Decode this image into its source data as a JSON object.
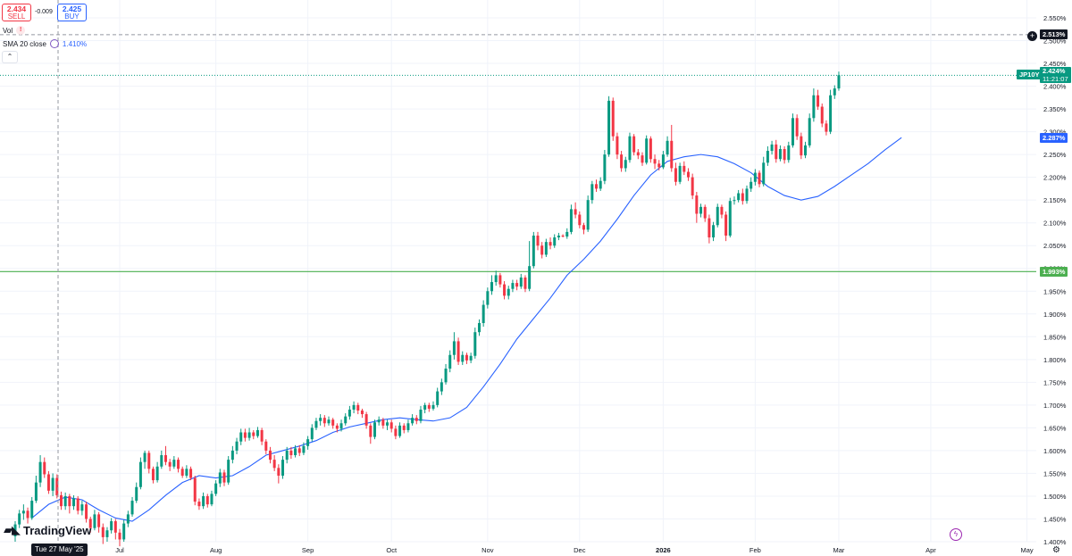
{
  "quote": {
    "sell_price": "2.434",
    "sell_label": "SELL",
    "buy_price": "2.425",
    "buy_label": "BUY",
    "spread": "-0.009"
  },
  "legend": {
    "vol_label": "Vol",
    "vol_icon": "warning-icon",
    "sma_label": "SMA 20 close",
    "sma_value": "1.410%",
    "collapse_icon": "chevron-up-icon"
  },
  "branding": {
    "logo_text": "TradingView"
  },
  "crosshair": {
    "date_label": "Tue 27 May '25"
  },
  "price_tags": {
    "crosshair_price": "2.513%",
    "symbol": "JP10Y",
    "last_price": "2.424%",
    "countdown": "11:21:07",
    "sma_price": "2.287%",
    "hline_price": "1.993%"
  },
  "colors": {
    "up": "#089981",
    "down": "#f23645",
    "sma": "#2962ff",
    "hline": "#4caf50",
    "grid": "#f0f3fa"
  },
  "chart_data": {
    "type": "candlestick",
    "title": "JP10Y",
    "ylim": [
      1.4,
      2.55
    ],
    "y_ticks": [
      "1.400%",
      "1.450%",
      "1.500%",
      "1.550%",
      "1.600%",
      "1.650%",
      "1.700%",
      "1.750%",
      "1.800%",
      "1.850%",
      "1.900%",
      "1.950%",
      "2.000%",
      "2.050%",
      "2.100%",
      "2.150%",
      "2.200%",
      "2.250%",
      "2.300%",
      "2.350%",
      "2.400%",
      "2.450%",
      "2.500%",
      "2.550%"
    ],
    "x_ticks": [
      {
        "label": "Jul",
        "index": 25
      },
      {
        "label": "Aug",
        "index": 48
      },
      {
        "label": "Sep",
        "index": 70
      },
      {
        "label": "Oct",
        "index": 90
      },
      {
        "label": "Nov",
        "index": 113
      },
      {
        "label": "Dec",
        "index": 135
      },
      {
        "label": "2026",
        "index": 155
      },
      {
        "label": "Feb",
        "index": 177
      },
      {
        "label": "Mar",
        "index": 197
      },
      {
        "label": "Apr",
        "index": 219
      },
      {
        "label": "May",
        "index": 242
      }
    ],
    "horizontal_line": 1.993,
    "crosshair_price": 2.513,
    "candles": [
      [
        1.412,
        1.438,
        1.4,
        1.445
      ],
      [
        1.438,
        1.462,
        1.43,
        1.47
      ],
      [
        1.462,
        1.468,
        1.448,
        1.482
      ],
      [
        1.468,
        1.452,
        1.44,
        1.475
      ],
      [
        1.452,
        1.49,
        1.448,
        1.498
      ],
      [
        1.49,
        1.53,
        1.485,
        1.545
      ],
      [
        1.53,
        1.575,
        1.52,
        1.59
      ],
      [
        1.575,
        1.548,
        1.54,
        1.585
      ],
      [
        1.548,
        1.512,
        1.505,
        1.555
      ],
      [
        1.512,
        1.54,
        1.5,
        1.55
      ],
      [
        1.54,
        1.502,
        1.495,
        1.548
      ],
      [
        1.502,
        1.478,
        1.47,
        1.51
      ],
      [
        1.478,
        1.5,
        1.47,
        1.508
      ],
      [
        1.5,
        1.478,
        1.462,
        1.505
      ],
      [
        1.478,
        1.495,
        1.47,
        1.502
      ],
      [
        1.495,
        1.468,
        1.46,
        1.5
      ],
      [
        1.468,
        1.482,
        1.458,
        1.49
      ],
      [
        1.482,
        1.45,
        1.442,
        1.488
      ],
      [
        1.45,
        1.43,
        1.42,
        1.455
      ],
      [
        1.43,
        1.46,
        1.425,
        1.47
      ],
      [
        1.46,
        1.432,
        1.42,
        1.465
      ],
      [
        1.432,
        1.41,
        1.395,
        1.44
      ],
      [
        1.41,
        1.425,
        1.4,
        1.432
      ],
      [
        1.425,
        1.445,
        1.418,
        1.452
      ],
      [
        1.445,
        1.42,
        1.405,
        1.45
      ],
      [
        1.42,
        1.405,
        1.39,
        1.428
      ],
      [
        1.405,
        1.44,
        1.4,
        1.448
      ],
      [
        1.44,
        1.46,
        1.432,
        1.468
      ],
      [
        1.46,
        1.49,
        1.455,
        1.498
      ],
      [
        1.49,
        1.52,
        1.485,
        1.53
      ],
      [
        1.52,
        1.575,
        1.515,
        1.585
      ],
      [
        1.575,
        1.595,
        1.56,
        1.6
      ],
      [
        1.595,
        1.56,
        1.55,
        1.6
      ],
      [
        1.56,
        1.535,
        1.528,
        1.565
      ],
      [
        1.535,
        1.565,
        1.53,
        1.575
      ],
      [
        1.565,
        1.59,
        1.56,
        1.6
      ],
      [
        1.59,
        1.575,
        1.568,
        1.61
      ],
      [
        1.575,
        1.565,
        1.555,
        1.582
      ],
      [
        1.565,
        1.58,
        1.56,
        1.588
      ],
      [
        1.58,
        1.56,
        1.552,
        1.585
      ],
      [
        1.56,
        1.545,
        1.54,
        1.565
      ],
      [
        1.545,
        1.56,
        1.54,
        1.568
      ],
      [
        1.56,
        1.54,
        1.535,
        1.565
      ],
      [
        1.54,
        1.488,
        1.48,
        1.545
      ],
      [
        1.488,
        1.478,
        1.47,
        1.495
      ],
      [
        1.478,
        1.5,
        1.472,
        1.508
      ],
      [
        1.5,
        1.482,
        1.475,
        1.505
      ],
      [
        1.482,
        1.505,
        1.478,
        1.512
      ],
      [
        1.505,
        1.528,
        1.5,
        1.535
      ],
      [
        1.528,
        1.552,
        1.52,
        1.56
      ],
      [
        1.552,
        1.53,
        1.522,
        1.558
      ],
      [
        1.53,
        1.58,
        1.525,
        1.588
      ],
      [
        1.58,
        1.6,
        1.572,
        1.61
      ],
      [
        1.6,
        1.62,
        1.592,
        1.628
      ],
      [
        1.62,
        1.64,
        1.612,
        1.648
      ],
      [
        1.64,
        1.628,
        1.62,
        1.648
      ],
      [
        1.628,
        1.64,
        1.622,
        1.65
      ],
      [
        1.64,
        1.632,
        1.625,
        1.645
      ],
      [
        1.632,
        1.645,
        1.628,
        1.652
      ],
      [
        1.645,
        1.62,
        1.612,
        1.65
      ],
      [
        1.62,
        1.6,
        1.592,
        1.625
      ],
      [
        1.6,
        1.58,
        1.572,
        1.608
      ],
      [
        1.58,
        1.562,
        1.555,
        1.59
      ],
      [
        1.562,
        1.545,
        1.528,
        1.57
      ],
      [
        1.545,
        1.58,
        1.538,
        1.588
      ],
      [
        1.58,
        1.6,
        1.572,
        1.608
      ],
      [
        1.6,
        1.59,
        1.582,
        1.608
      ],
      [
        1.59,
        1.605,
        1.585,
        1.612
      ],
      [
        1.605,
        1.595,
        1.588,
        1.612
      ],
      [
        1.595,
        1.61,
        1.59,
        1.618
      ],
      [
        1.61,
        1.625,
        1.602,
        1.632
      ],
      [
        1.625,
        1.65,
        1.62,
        1.658
      ],
      [
        1.65,
        1.665,
        1.645,
        1.672
      ],
      [
        1.665,
        1.672,
        1.655,
        1.68
      ],
      [
        1.672,
        1.66,
        1.652,
        1.678
      ],
      [
        1.66,
        1.668,
        1.655,
        1.675
      ],
      [
        1.668,
        1.655,
        1.648,
        1.672
      ],
      [
        1.655,
        1.648,
        1.64,
        1.66
      ],
      [
        1.648,
        1.66,
        1.642,
        1.668
      ],
      [
        1.66,
        1.675,
        1.655,
        1.682
      ],
      [
        1.675,
        1.69,
        1.668,
        1.698
      ],
      [
        1.69,
        1.7,
        1.682,
        1.708
      ],
      [
        1.7,
        1.688,
        1.68,
        1.705
      ],
      [
        1.688,
        1.68,
        1.672,
        1.692
      ],
      [
        1.68,
        1.655,
        1.648,
        1.685
      ],
      [
        1.655,
        1.63,
        1.615,
        1.66
      ],
      [
        1.63,
        1.662,
        1.625,
        1.668
      ],
      [
        1.662,
        1.668,
        1.655,
        1.675
      ],
      [
        1.668,
        1.655,
        1.648,
        1.672
      ],
      [
        1.655,
        1.662,
        1.645,
        1.668
      ],
      [
        1.662,
        1.648,
        1.64,
        1.668
      ],
      [
        1.648,
        1.632,
        1.625,
        1.655
      ],
      [
        1.632,
        1.655,
        1.628,
        1.662
      ],
      [
        1.655,
        1.645,
        1.638,
        1.66
      ],
      [
        1.645,
        1.66,
        1.64,
        1.668
      ],
      [
        1.66,
        1.672,
        1.655,
        1.68
      ],
      [
        1.672,
        1.665,
        1.658,
        1.678
      ],
      [
        1.665,
        1.69,
        1.66,
        1.698
      ],
      [
        1.69,
        1.7,
        1.682,
        1.705
      ],
      [
        1.7,
        1.692,
        1.685,
        1.705
      ],
      [
        1.692,
        1.7,
        1.688,
        1.708
      ],
      [
        1.7,
        1.73,
        1.695,
        1.738
      ],
      [
        1.73,
        1.75,
        1.722,
        1.758
      ],
      [
        1.75,
        1.78,
        1.745,
        1.79
      ],
      [
        1.78,
        1.81,
        1.772,
        1.82
      ],
      [
        1.81,
        1.84,
        1.8,
        1.86
      ],
      [
        1.84,
        1.795,
        1.788,
        1.848
      ],
      [
        1.795,
        1.81,
        1.788,
        1.818
      ],
      [
        1.81,
        1.798,
        1.79,
        1.815
      ],
      [
        1.798,
        1.808,
        1.792,
        1.815
      ],
      [
        1.808,
        1.86,
        1.802,
        1.87
      ],
      [
        1.86,
        1.88,
        1.852,
        1.888
      ],
      [
        1.88,
        1.92,
        1.872,
        1.93
      ],
      [
        1.92,
        1.95,
        1.912,
        1.958
      ],
      [
        1.95,
        1.97,
        1.942,
        1.985
      ],
      [
        1.97,
        1.985,
        1.962,
        1.995
      ],
      [
        1.985,
        1.965,
        1.958,
        1.99
      ],
      [
        1.965,
        1.94,
        1.932,
        1.972
      ],
      [
        1.94,
        1.955,
        1.932,
        1.962
      ],
      [
        1.955,
        1.968,
        1.948,
        1.975
      ],
      [
        1.968,
        1.96,
        1.952,
        1.975
      ],
      [
        1.96,
        1.98,
        1.955,
        1.988
      ],
      [
        1.98,
        1.955,
        1.948,
        1.985
      ],
      [
        1.955,
        2.005,
        1.95,
        2.06
      ],
      [
        2.005,
        2.072,
        2.0,
        2.08
      ],
      [
        2.072,
        2.05,
        2.04,
        2.08
      ],
      [
        2.05,
        2.03,
        2.022,
        2.058
      ],
      [
        2.03,
        2.058,
        2.025,
        2.065
      ],
      [
        2.058,
        2.05,
        2.042,
        2.068
      ],
      [
        2.05,
        2.068,
        2.045,
        2.075
      ],
      [
        2.068,
        2.072,
        2.062,
        2.078
      ],
      [
        2.072,
        2.07,
        2.068,
        2.075
      ],
      [
        2.07,
        2.08,
        2.065,
        2.088
      ],
      [
        2.08,
        2.13,
        2.075,
        2.14
      ],
      [
        2.13,
        2.118,
        2.11,
        2.145
      ],
      [
        2.118,
        2.095,
        2.088,
        2.125
      ],
      [
        2.095,
        2.085,
        2.075,
        2.1
      ],
      [
        2.085,
        2.15,
        2.08,
        2.16
      ],
      [
        2.15,
        2.185,
        2.142,
        2.192
      ],
      [
        2.185,
        2.175,
        2.168,
        2.195
      ],
      [
        2.175,
        2.192,
        2.17,
        2.2
      ],
      [
        2.192,
        2.25,
        2.185,
        2.26
      ],
      [
        2.25,
        2.368,
        2.245,
        2.378
      ],
      [
        2.368,
        2.29,
        2.28,
        2.375
      ],
      [
        2.29,
        2.25,
        2.24,
        2.298
      ],
      [
        2.25,
        2.22,
        2.212,
        2.258
      ],
      [
        2.22,
        2.238,
        2.212,
        2.245
      ],
      [
        2.238,
        2.29,
        2.232,
        2.298
      ],
      [
        2.29,
        2.255,
        2.248,
        2.295
      ],
      [
        2.255,
        2.248,
        2.24,
        2.262
      ],
      [
        2.248,
        2.232,
        2.225,
        2.255
      ],
      [
        2.232,
        2.285,
        2.228,
        2.292
      ],
      [
        2.285,
        2.24,
        2.232,
        2.29
      ],
      [
        2.24,
        2.23,
        2.218,
        2.25
      ],
      [
        2.23,
        2.222,
        2.215,
        2.238
      ],
      [
        2.222,
        2.25,
        2.218,
        2.258
      ],
      [
        2.25,
        2.28,
        2.245,
        2.29
      ],
      [
        2.28,
        2.22,
        2.212,
        2.315
      ],
      [
        2.22,
        2.19,
        2.182,
        2.232
      ],
      [
        2.19,
        2.225,
        2.185,
        2.232
      ],
      [
        2.225,
        2.212,
        2.205,
        2.235
      ],
      [
        2.212,
        2.2,
        2.192,
        2.22
      ],
      [
        2.2,
        2.16,
        2.152,
        2.208
      ],
      [
        2.16,
        2.12,
        2.1,
        2.168
      ],
      [
        2.12,
        2.135,
        2.112,
        2.142
      ],
      [
        2.135,
        2.11,
        2.102,
        2.14
      ],
      [
        2.11,
        2.068,
        2.055,
        2.118
      ],
      [
        2.068,
        2.095,
        2.06,
        2.102
      ],
      [
        2.095,
        2.135,
        2.09,
        2.142
      ],
      [
        2.135,
        2.118,
        2.11,
        2.14
      ],
      [
        2.118,
        2.072,
        2.06,
        2.125
      ],
      [
        2.072,
        2.148,
        2.068,
        2.155
      ],
      [
        2.148,
        2.15,
        2.14,
        2.158
      ],
      [
        2.15,
        2.165,
        2.145,
        2.172
      ],
      [
        2.165,
        2.148,
        2.14,
        2.175
      ],
      [
        2.148,
        2.175,
        2.142,
        2.182
      ],
      [
        2.175,
        2.19,
        2.168,
        2.2
      ],
      [
        2.19,
        2.21,
        2.182,
        2.218
      ],
      [
        2.21,
        2.185,
        2.178,
        2.215
      ],
      [
        2.185,
        2.232,
        2.18,
        2.245
      ],
      [
        2.232,
        2.258,
        2.225,
        2.268
      ],
      [
        2.258,
        2.272,
        2.25,
        2.28
      ],
      [
        2.272,
        2.24,
        2.232,
        2.282
      ],
      [
        2.24,
        2.262,
        2.235,
        2.27
      ],
      [
        2.262,
        2.238,
        2.23,
        2.268
      ],
      [
        2.238,
        2.27,
        2.232,
        2.278
      ],
      [
        2.27,
        2.33,
        2.265,
        2.34
      ],
      [
        2.33,
        2.29,
        2.282,
        2.338
      ],
      [
        2.29,
        2.248,
        2.24,
        2.298
      ],
      [
        2.248,
        2.27,
        2.242,
        2.278
      ],
      [
        2.27,
        2.33,
        2.265,
        2.34
      ],
      [
        2.33,
        2.38,
        2.322,
        2.395
      ],
      [
        2.38,
        2.355,
        2.348,
        2.392
      ],
      [
        2.355,
        2.318,
        2.31,
        2.362
      ],
      [
        2.318,
        2.3,
        2.292,
        2.325
      ],
      [
        2.3,
        2.38,
        2.295,
        2.392
      ],
      [
        2.38,
        2.395,
        2.372,
        2.402
      ],
      [
        2.395,
        2.424,
        2.39,
        2.432
      ]
    ],
    "sma": [
      [
        4,
        1.452
      ],
      [
        8,
        1.482
      ],
      [
        12,
        1.498
      ],
      [
        16,
        1.492
      ],
      [
        20,
        1.47
      ],
      [
        24,
        1.452
      ],
      [
        28,
        1.445
      ],
      [
        32,
        1.47
      ],
      [
        36,
        1.502
      ],
      [
        40,
        1.53
      ],
      [
        44,
        1.545
      ],
      [
        48,
        1.54
      ],
      [
        52,
        1.545
      ],
      [
        56,
        1.565
      ],
      [
        60,
        1.59
      ],
      [
        64,
        1.6
      ],
      [
        68,
        1.61
      ],
      [
        72,
        1.622
      ],
      [
        76,
        1.64
      ],
      [
        80,
        1.652
      ],
      [
        84,
        1.66
      ],
      [
        88,
        1.668
      ],
      [
        92,
        1.672
      ],
      [
        96,
        1.668
      ],
      [
        100,
        1.665
      ],
      [
        104,
        1.672
      ],
      [
        108,
        1.695
      ],
      [
        112,
        1.74
      ],
      [
        116,
        1.79
      ],
      [
        120,
        1.845
      ],
      [
        124,
        1.89
      ],
      [
        128,
        1.935
      ],
      [
        132,
        1.985
      ],
      [
        136,
        2.02
      ],
      [
        140,
        2.06
      ],
      [
        144,
        2.108
      ],
      [
        148,
        2.16
      ],
      [
        152,
        2.205
      ],
      [
        156,
        2.235
      ],
      [
        160,
        2.245
      ],
      [
        164,
        2.25
      ],
      [
        168,
        2.245
      ],
      [
        172,
        2.23
      ],
      [
        176,
        2.21
      ],
      [
        180,
        2.18
      ],
      [
        184,
        2.16
      ],
      [
        188,
        2.15
      ],
      [
        192,
        2.158
      ],
      [
        196,
        2.18
      ],
      [
        200,
        2.205
      ],
      [
        204,
        2.23
      ],
      [
        208,
        2.26
      ],
      [
        212,
        2.287
      ]
    ]
  }
}
